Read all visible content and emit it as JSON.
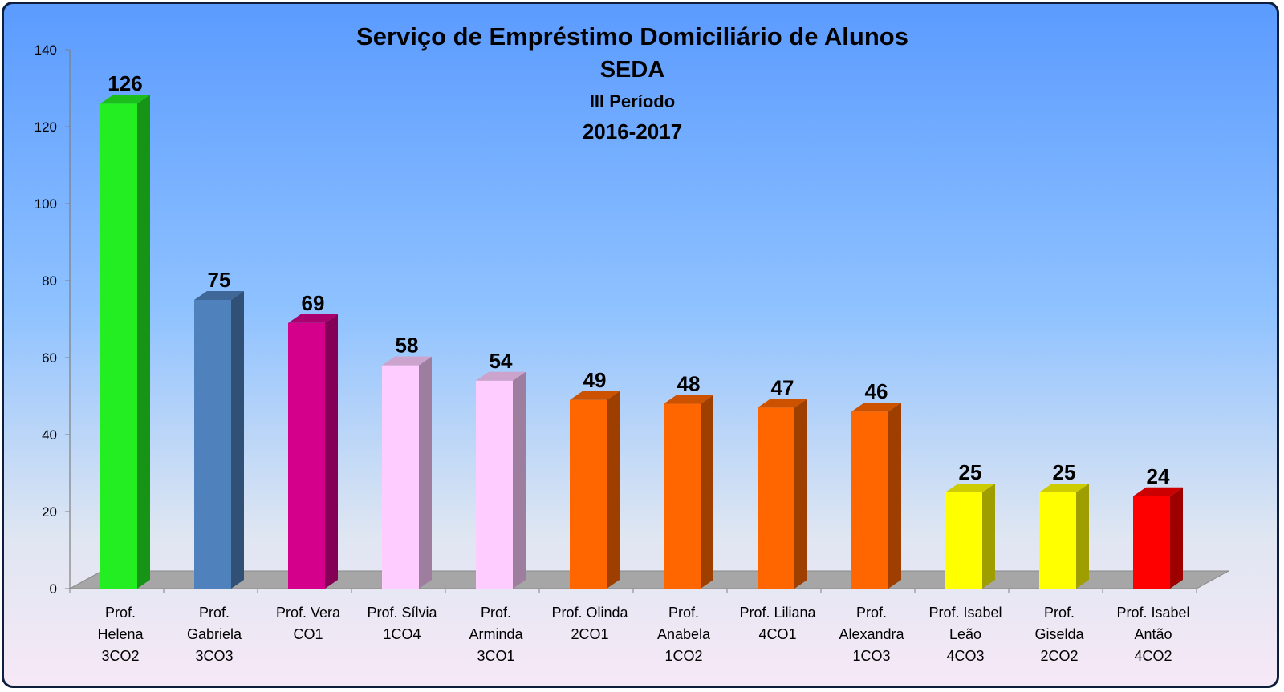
{
  "chart_data": {
    "type": "bar",
    "title_lines": [
      "Serviço de Empréstimo Domiciliário de Alunos",
      "SEDA",
      "III Período",
      "2016-2017"
    ],
    "xlabel": "",
    "ylabel": "",
    "ylim": [
      0,
      140
    ],
    "yticks": [
      0,
      20,
      40,
      60,
      80,
      100,
      120,
      140
    ],
    "grid": false,
    "legend": "none",
    "categories": [
      [
        "Prof.",
        "Helena",
        "3CO2"
      ],
      [
        "Prof.",
        "Gabriela",
        "3CO3"
      ],
      [
        "Prof. Vera",
        "CO1"
      ],
      [
        "Prof. Sílvia",
        "1CO4"
      ],
      [
        "Prof.",
        "Arminda",
        "3CO1"
      ],
      [
        "Prof. Olinda",
        "2CO1"
      ],
      [
        "Prof.",
        "Anabela",
        "1CO2"
      ],
      [
        "Prof. Liliana",
        "4CO1"
      ],
      [
        "Prof.",
        "Alexandra",
        "1CO3"
      ],
      [
        "Prof. Isabel",
        "Leão",
        "4CO3"
      ],
      [
        "Prof.",
        "Giselda",
        "2CO2"
      ],
      [
        "Prof. Isabel",
        "Antão",
        "4CO2"
      ]
    ],
    "values": [
      126,
      75,
      69,
      58,
      54,
      49,
      48,
      47,
      46,
      25,
      25,
      24
    ],
    "colors": [
      "#22ee22",
      "#4f81bd",
      "#d4008b",
      "#ffccff",
      "#ffccff",
      "#ff6600",
      "#ff6600",
      "#ff6600",
      "#ff6600",
      "#ffff00",
      "#ffff00",
      "#ff0000"
    ]
  }
}
